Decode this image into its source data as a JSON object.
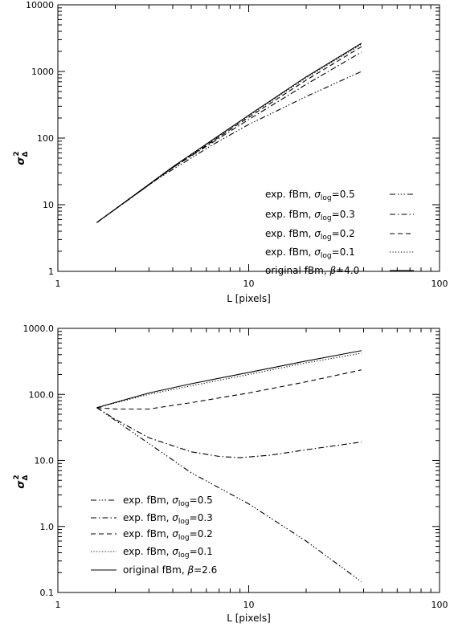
{
  "chart_data": [
    {
      "type": "line",
      "xlabel": "L [pixels]",
      "ylabel": {
        "symbol": "σ",
        "subscript": "Δ",
        "superscript": "2"
      },
      "x_scale": "log",
      "y_scale": "log",
      "xlim": [
        1,
        100
      ],
      "ylim": [
        1,
        10000
      ],
      "x_tick_labels": [
        "1",
        "10",
        "100"
      ],
      "y_tick_labels": [
        "1",
        "10",
        "100",
        "1000",
        "10000"
      ],
      "grid": false,
      "legend_position": "bottom-right",
      "series": [
        {
          "name": "exp. fBm, σlog=0.5",
          "label_main": "exp. fBm, ",
          "label_symbol": "σ",
          "label_sub": "log",
          "label_tail": "=0.5",
          "dash": "dash-dot-dot-dot",
          "points": [
            [
              1.6,
              5.4
            ],
            [
              3.3,
              24
            ],
            [
              6.5,
              80
            ],
            [
              10,
              160
            ],
            [
              20,
              420
            ],
            [
              39,
              1000
            ]
          ]
        },
        {
          "name": "exp. fBm, σlog=0.3",
          "label_main": "exp. fBm, ",
          "label_symbol": "σ",
          "label_sub": "log",
          "label_tail": "=0.3",
          "dash": "dash-dot",
          "points": [
            [
              1.6,
              5.4
            ],
            [
              4,
              36
            ],
            [
              10,
              190
            ],
            [
              20,
              640
            ],
            [
              39,
              1950
            ]
          ]
        },
        {
          "name": "exp. fBm, σlog=0.2",
          "label_main": "exp. fBm, ",
          "label_symbol": "σ",
          "label_sub": "log",
          "label_tail": "=0.2",
          "dash": "dashed",
          "points": [
            [
              1.6,
              5.4
            ],
            [
              4,
              36
            ],
            [
              10,
              205
            ],
            [
              20,
              740
            ],
            [
              39,
              2350
            ]
          ]
        },
        {
          "name": "exp. fBm, σlog=0.1",
          "label_main": "exp. fBm, ",
          "label_symbol": "σ",
          "label_sub": "log",
          "label_tail": "=0.1",
          "dash": "dotted",
          "points": [
            [
              1.6,
              5.4
            ],
            [
              4,
              36
            ],
            [
              10,
              215
            ],
            [
              20,
              800
            ],
            [
              39,
              2550
            ]
          ]
        },
        {
          "name": "original fBm, β=4.0",
          "label_main": "original fBm, ",
          "label_symbol": "β",
          "label_sub": "",
          "label_tail": "=4.0",
          "dash": "solid",
          "points": [
            [
              1.6,
              5.4
            ],
            [
              4,
              37
            ],
            [
              10,
              220
            ],
            [
              20,
              830
            ],
            [
              39,
              2650
            ]
          ]
        }
      ]
    },
    {
      "type": "line",
      "xlabel": "L [pixels]",
      "ylabel": {
        "symbol": "σ",
        "subscript": "Δ",
        "superscript": "2"
      },
      "x_scale": "log",
      "y_scale": "log",
      "xlim": [
        1,
        100
      ],
      "ylim": [
        0.1,
        1000
      ],
      "x_tick_labels": [
        "1",
        "10",
        "100"
      ],
      "y_tick_labels": [
        "0.1",
        "1.0",
        "10.0",
        "100.0",
        "1000.0"
      ],
      "grid": false,
      "legend_position": "bottom-left",
      "series": [
        {
          "name": "exp. fBm, σlog=0.5",
          "label_main": "exp. fBm, ",
          "label_symbol": "σ",
          "label_sub": "log",
          "label_tail": "=0.5",
          "dash": "dash-dot-dot-dot",
          "points": [
            [
              1.6,
              63
            ],
            [
              3,
              18
            ],
            [
              5,
              6.5
            ],
            [
              10,
              2.2
            ],
            [
              20,
              0.6
            ],
            [
              39,
              0.145
            ]
          ]
        },
        {
          "name": "exp. fBm, σlog=0.3",
          "label_main": "exp. fBm, ",
          "label_symbol": "σ",
          "label_sub": "log",
          "label_tail": "=0.3",
          "dash": "dash-dot",
          "points": [
            [
              1.6,
              63
            ],
            [
              2,
              42
            ],
            [
              3,
              22
            ],
            [
              5,
              13.5
            ],
            [
              7,
              11.5
            ],
            [
              9,
              11
            ],
            [
              13,
              12
            ],
            [
              20,
              14.5
            ],
            [
              39,
              19
            ]
          ]
        },
        {
          "name": "exp. fBm, σlog=0.2",
          "label_main": "exp. fBm, ",
          "label_symbol": "σ",
          "label_sub": "log",
          "label_tail": "=0.2",
          "dash": "dashed",
          "points": [
            [
              1.6,
              63
            ],
            [
              2,
              60
            ],
            [
              3,
              60
            ],
            [
              5,
              75
            ],
            [
              10,
              105
            ],
            [
              20,
              155
            ],
            [
              39,
              235
            ]
          ]
        },
        {
          "name": "exp. fBm, σlog=0.1",
          "label_main": "exp. fBm, ",
          "label_symbol": "σ",
          "label_sub": "log",
          "label_tail": "=0.1",
          "dash": "dotted",
          "points": [
            [
              1.6,
              63
            ],
            [
              3,
              100
            ],
            [
              5,
              135
            ],
            [
              10,
              200
            ],
            [
              20,
              300
            ],
            [
              39,
              420
            ]
          ]
        },
        {
          "name": "original fBm, β=2.6",
          "label_main": "original fBm, ",
          "label_symbol": "β",
          "label_sub": "",
          "label_tail": "=2.6",
          "dash": "solid",
          "points": [
            [
              1.6,
              63
            ],
            [
              3,
              105
            ],
            [
              5,
              145
            ],
            [
              10,
              215
            ],
            [
              20,
              320
            ],
            [
              39,
              460
            ]
          ]
        }
      ]
    }
  ]
}
